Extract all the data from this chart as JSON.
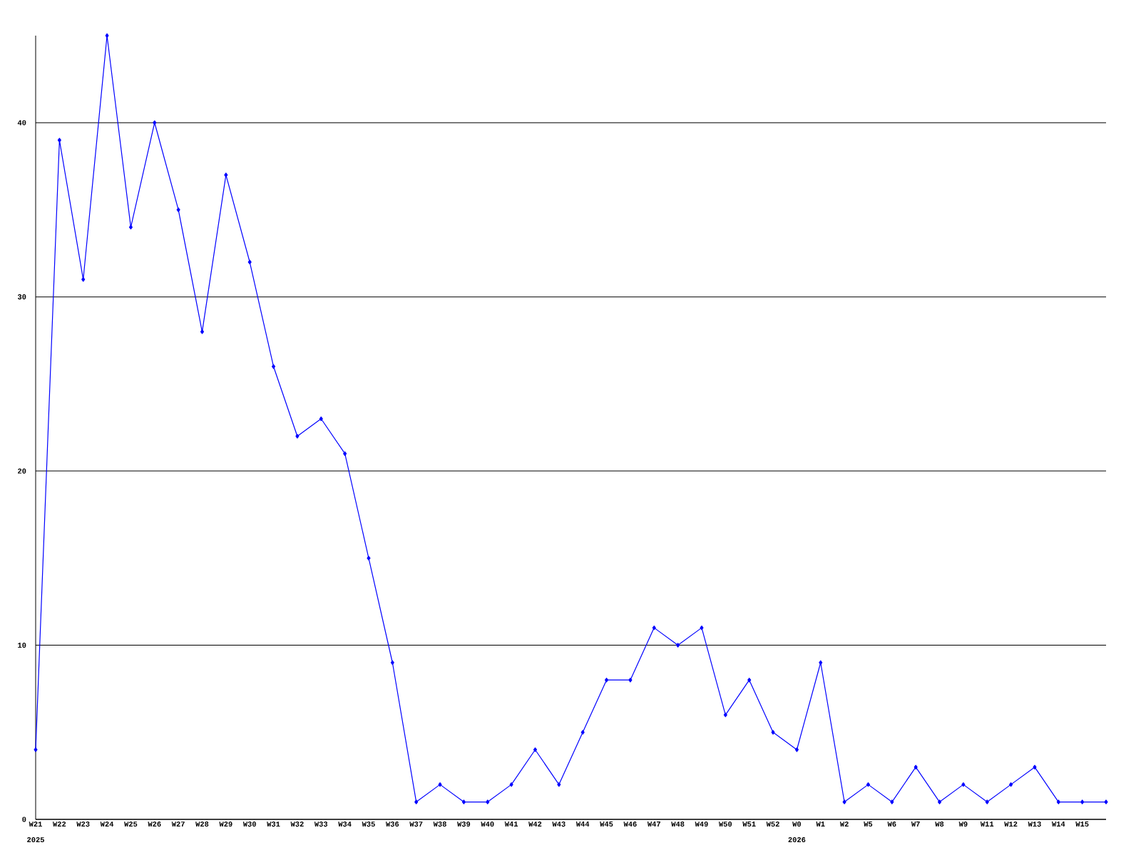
{
  "chart_data": {
    "type": "line",
    "categories": [
      "W21",
      "W22",
      "W23",
      "W24",
      "W25",
      "W26",
      "W27",
      "W28",
      "W29",
      "W30",
      "W31",
      "W32",
      "W33",
      "W34",
      "W35",
      "W36",
      "W37",
      "W38",
      "W39",
      "W40",
      "W41",
      "W42",
      "W43",
      "W44",
      "W45",
      "W46",
      "W47",
      "W48",
      "W49",
      "W50",
      "W51",
      "W52",
      "W0",
      "W1",
      "W2",
      "W5",
      "W6",
      "W7",
      "W8",
      "W9",
      "W11",
      "W12",
      "W13",
      "W14",
      "W15",
      null
    ],
    "series": [
      {
        "color": "#0000ff",
        "values": [
          4,
          39,
          31,
          45,
          34,
          40,
          35,
          28,
          37,
          32,
          26,
          22,
          23,
          21,
          15,
          9,
          1,
          2,
          1,
          1,
          2,
          4,
          2,
          5,
          8,
          8,
          11,
          10,
          11,
          6,
          8,
          5,
          4,
          9,
          1,
          2,
          1,
          3,
          1,
          2,
          1,
          2,
          3,
          1,
          1,
          1
        ]
      }
    ],
    "ylim": [
      0,
      45
    ],
    "yticks": [
      0,
      10,
      20,
      30,
      40
    ],
    "grid": "y",
    "marker": "diamond",
    "line_style": "solid",
    "annotations": [
      "2025",
      "2026"
    ]
  }
}
